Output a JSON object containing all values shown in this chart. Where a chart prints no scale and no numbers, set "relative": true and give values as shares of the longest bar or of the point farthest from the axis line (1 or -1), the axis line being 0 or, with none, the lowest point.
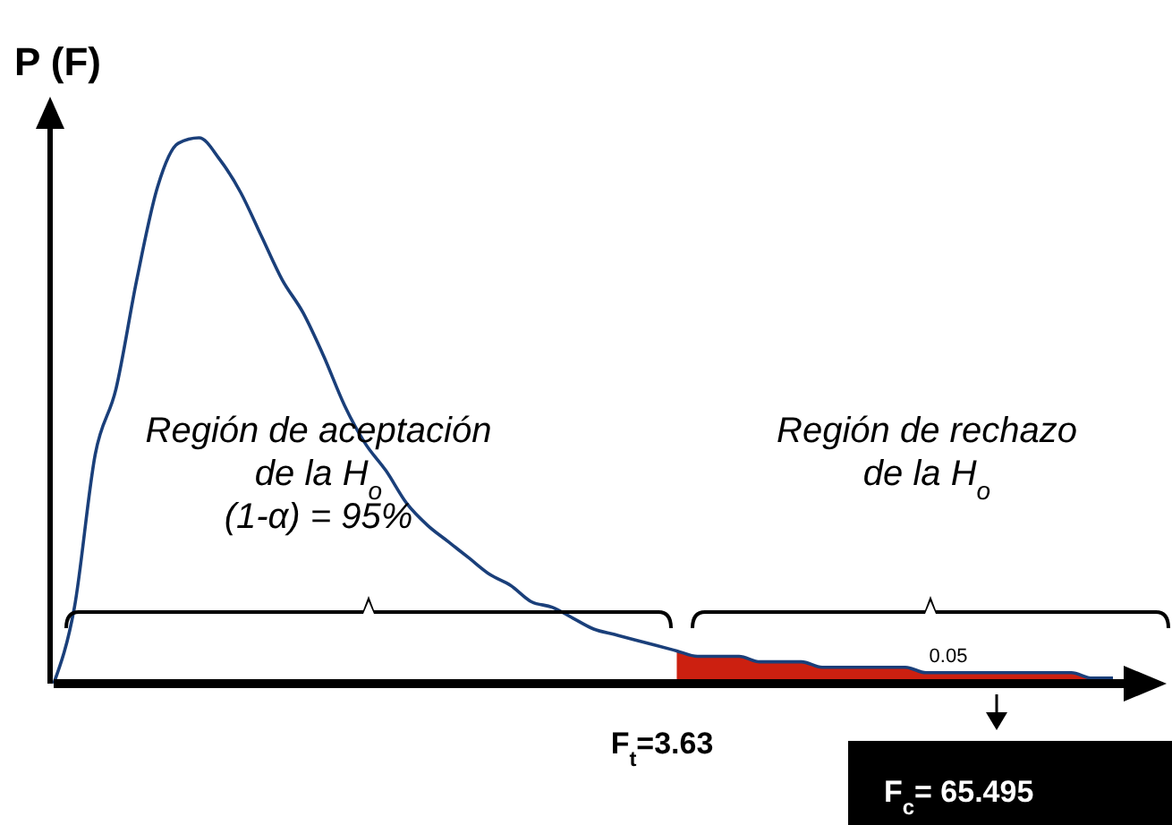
{
  "chart_data": {
    "type": "line",
    "relative": true,
    "ylabel": "P (F)",
    "categories": [
      null,
      null,
      null,
      null,
      null,
      null,
      null,
      null,
      null,
      null,
      null,
      null,
      null,
      null,
      null,
      null,
      null,
      null,
      null,
      null,
      null,
      null,
      null,
      null,
      null,
      null,
      null,
      null,
      null,
      null,
      null,
      null,
      null,
      null,
      null,
      null,
      null,
      null,
      null,
      null,
      null,
      null,
      null,
      null,
      null,
      null,
      null,
      null,
      null,
      null,
      null,
      null
    ],
    "series": [
      {
        "color": "#1a3f7a",
        "values": [
          0,
          0.14,
          0.42,
          0.54,
          0.74,
          0.91,
          0.99,
          1,
          0.96,
          0.9,
          0.82,
          0.74,
          0.68,
          0.6,
          0.51,
          0.44,
          0.39,
          0.33,
          0.29,
          0.26,
          0.23,
          0.2,
          0.18,
          0.15,
          0.14,
          0.12,
          0.1,
          0.09,
          0.08,
          0.07,
          0.06,
          0.05,
          0.05,
          0.05,
          0.04,
          0.04,
          0.04,
          0.03,
          0.03,
          0.03,
          0.03,
          0.03,
          0.02,
          0.02,
          0.02,
          0.02,
          0.02,
          0.02,
          0.02,
          0.02,
          0.01,
          0.01
        ]
      },
      {
        "type": "area",
        "color": "#cc2010",
        "values": [
          null,
          null,
          null,
          null,
          null,
          null,
          null,
          null,
          null,
          null,
          null,
          null,
          null,
          null,
          null,
          null,
          null,
          null,
          null,
          null,
          null,
          null,
          null,
          null,
          null,
          null,
          null,
          null,
          null,
          null,
          0.06,
          0.05,
          0.05,
          0.05,
          0.04,
          0.04,
          0.04,
          0.03,
          0.03,
          0.03,
          0.03,
          0.03,
          0.02,
          0.02,
          0.02,
          0.02,
          0.02,
          0.02,
          0.02,
          0.02,
          0.01,
          0.01
        ]
      }
    ],
    "annotations": [
      "Región de aceptación\nde la H$_{o}$\n(1-α)  = 95%",
      "Región de rechazo\nde la H$_{o}$",
      "0.05",
      "F$_{t}$=3.63",
      "F$_{c}$= 65.495"
    ]
  }
}
